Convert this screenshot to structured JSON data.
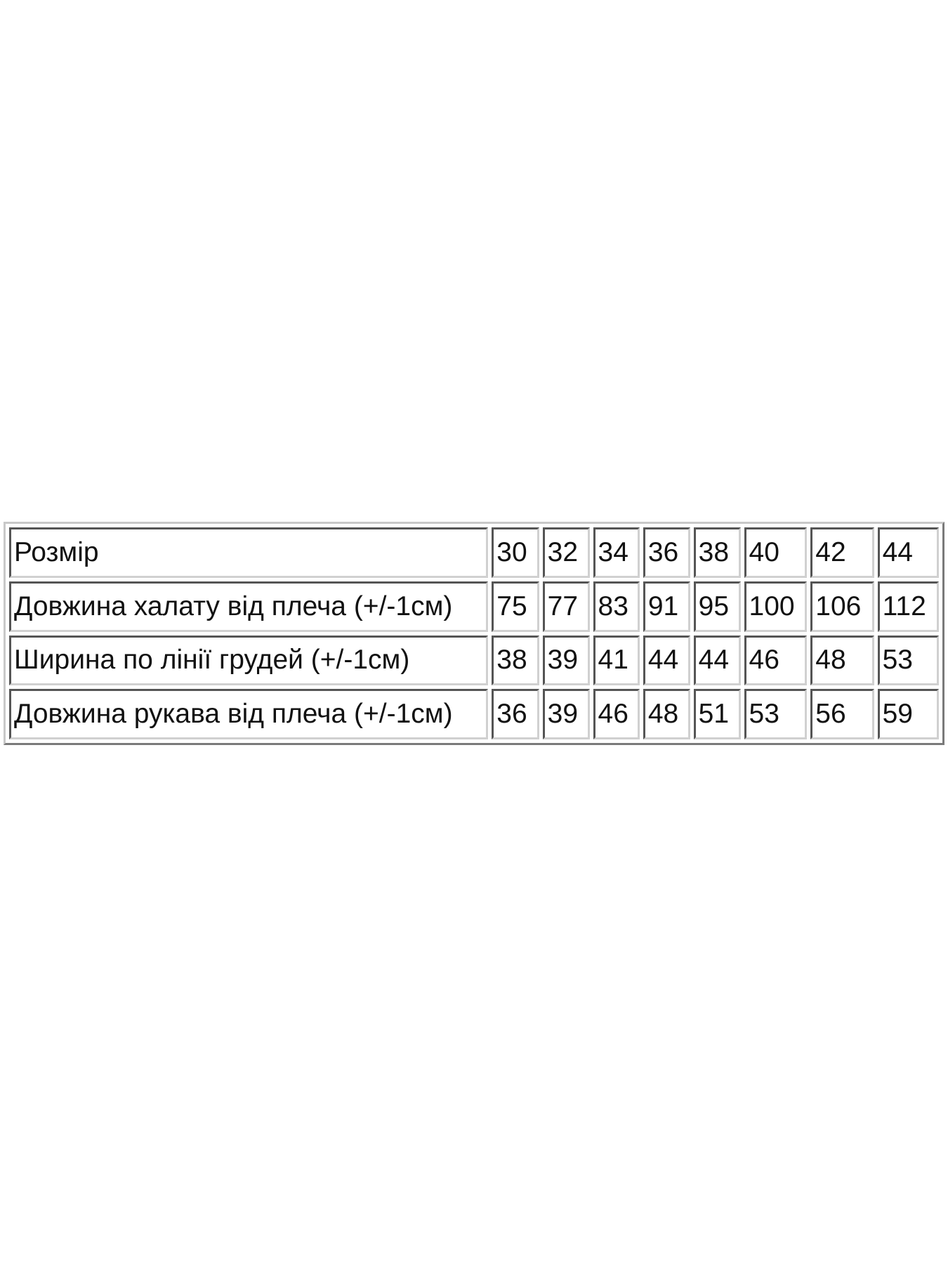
{
  "size_table": {
    "rows": [
      {
        "label": "Розмір",
        "values": [
          "30",
          "32",
          "34",
          "36",
          "38",
          "40",
          "42",
          "44"
        ]
      },
      {
        "label": "Довжина халату від плеча (+/-1см)",
        "values": [
          "75",
          "77",
          "83",
          "91",
          "95",
          "100",
          "106",
          "112"
        ]
      },
      {
        "label": "Ширина по лінії грудей (+/-1см)",
        "values": [
          "38",
          "39",
          "41",
          "44",
          "44",
          "46",
          "48",
          "53"
        ]
      },
      {
        "label": "Довжина рукава від плеча (+/-1см)",
        "values": [
          "36",
          "39",
          "46",
          "48",
          "51",
          "53",
          "56",
          "59"
        ]
      }
    ]
  }
}
